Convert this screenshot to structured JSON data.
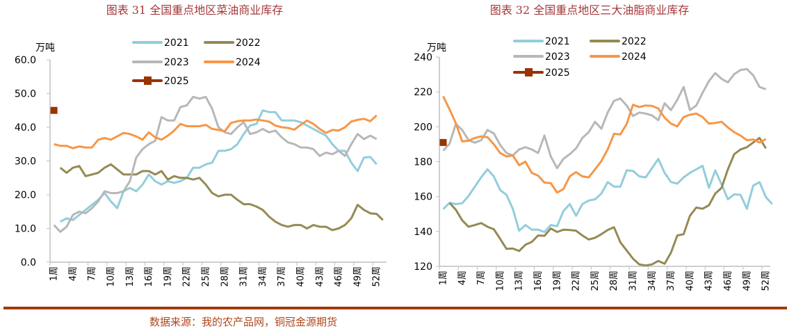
{
  "footer": {
    "source": "数据来源：我的农产品网，铜冠金源期货"
  },
  "colors": {
    "2021": "#92cddc",
    "2022": "#948a54",
    "2023": "#b7b7b7",
    "2024": "#f79646",
    "2025": "#993300",
    "title": "#a4373a",
    "rule": "#a33a0a"
  },
  "chart_data": [
    {
      "type": "line",
      "title": "图表 31  全国重点地区菜油商业库存",
      "ylabel": "万吨",
      "xlabel": "",
      "ylim": [
        0,
        60
      ],
      "yticks": [
        "60.0",
        "50.0",
        "40.0",
        "30.0",
        "20.0",
        "10.0",
        "0.0"
      ],
      "xtick_labels": [
        "1周",
        "4周",
        "7周",
        "10周",
        "13周",
        "16周",
        "19周",
        "22周",
        "25周",
        "28周",
        "31周",
        "34周",
        "37周",
        "40周",
        "43周",
        "46周",
        "49周",
        "52周"
      ],
      "grid": false,
      "legend": "top",
      "series": [
        {
          "name": "2021",
          "values": [
            null,
            12,
            13,
            12.5,
            14,
            15.5,
            17,
            18.5,
            20.5,
            18,
            16,
            21,
            22,
            21,
            23,
            26,
            24,
            23,
            24,
            23.5,
            24,
            25,
            28,
            28,
            29,
            29.5,
            33,
            33,
            33.5,
            35,
            38,
            40.5,
            41,
            45,
            44.5,
            44.5,
            42,
            42,
            42,
            41.5,
            40.5,
            39.5,
            38.5,
            37.5,
            35,
            33,
            33,
            29.5,
            27,
            31,
            31.2,
            29
          ]
        },
        {
          "name": "2022",
          "values": [
            null,
            28,
            26.5,
            28,
            28.5,
            25.5,
            26,
            26.5,
            28,
            29,
            27.5,
            26,
            26,
            26,
            27,
            27,
            26,
            27,
            24.5,
            25.5,
            25,
            25,
            24.5,
            25,
            23,
            20.5,
            19.5,
            20,
            20,
            18.5,
            17.2,
            17.2,
            16.5,
            15.5,
            13.5,
            12,
            11,
            10.5,
            11,
            11,
            10,
            11,
            10.5,
            10.5,
            9.5,
            10,
            11,
            13,
            17,
            15.5,
            14.5,
            14.3,
            12.5
          ]
        },
        {
          "name": "2023",
          "values": [
            11,
            9,
            10.5,
            14,
            15,
            14.5,
            16,
            18,
            21,
            20.5,
            20.5,
            21,
            24,
            31,
            33.5,
            35,
            36,
            43,
            42,
            42,
            46,
            46.5,
            49,
            48.5,
            49,
            45.5,
            40,
            38.5,
            38,
            40,
            41.5,
            38,
            38.5,
            39.5,
            38.5,
            39,
            37,
            35.5,
            35,
            34,
            34,
            33.5,
            31.5,
            32.5,
            32,
            33,
            31.5,
            35,
            38,
            36.5,
            37.5,
            36.5
          ]
        },
        {
          "name": "2024",
          "values": [
            35,
            34.5,
            34.5,
            33.8,
            34.3,
            34,
            34,
            36.3,
            36.8,
            36.3,
            37.3,
            38.3,
            38,
            37.3,
            36.3,
            38.5,
            37,
            36.3,
            37.5,
            39,
            41,
            40.3,
            40.3,
            40.3,
            40.7,
            39.5,
            39.2,
            38.8,
            41.3,
            41.8,
            42,
            42,
            42.3,
            42,
            41.7,
            40.5,
            40,
            39.8,
            39.3,
            40.7,
            42,
            41,
            39.5,
            38.3,
            39.2,
            39,
            40,
            41.7,
            42.2,
            42.5,
            41.8,
            43.5
          ]
        },
        {
          "name": "2025",
          "values": [
            45
          ],
          "marker": "square"
        }
      ]
    },
    {
      "type": "line",
      "title": "图表 32  全国重点地区三大油脂商业库存",
      "ylabel": "万吨",
      "xlabel": "",
      "ylim": [
        120,
        240
      ],
      "yticks": [
        "240",
        "220",
        "200",
        "180",
        "160",
        "140",
        "120"
      ],
      "xtick_labels": [
        "1周",
        "4周",
        "7周",
        "10周",
        "13周",
        "16周",
        "19周",
        "22周",
        "25周",
        "28周",
        "31周",
        "34周",
        "37周",
        "40周",
        "43周",
        "46周",
        "49周",
        "52周"
      ],
      "grid": false,
      "legend": "top",
      "series": [
        {
          "name": "2021",
          "values": [
            152.8,
            156.4,
            155.7,
            156.2,
            160.3,
            165.7,
            171,
            175.6,
            171.6,
            163.7,
            161,
            153,
            140.4,
            143.7,
            141,
            141,
            139.7,
            143.7,
            143,
            151.7,
            155.7,
            149,
            155.7,
            157.7,
            158.4,
            161.7,
            168.3,
            165.7,
            165.7,
            175,
            174.7,
            171.6,
            171,
            176.3,
            181.6,
            173.6,
            168.3,
            167.4,
            171,
            173.6,
            175.6,
            177.6,
            165,
            175,
            167,
            158.4,
            161.3,
            161,
            153,
            166.3,
            168.3,
            159.7,
            155.7
          ]
        },
        {
          "name": "2022",
          "values": [
            null,
            156.4,
            152.4,
            146.4,
            142.7,
            143.7,
            144.8,
            142.7,
            141.3,
            135.8,
            130,
            130.2,
            128.8,
            132.4,
            134,
            137.7,
            137.5,
            141.7,
            139.7,
            141,
            140.8,
            140.4,
            137.7,
            135.4,
            136.4,
            138.4,
            140.8,
            142.4,
            133.8,
            129.1,
            124.4,
            121.1,
            120.5,
            121.1,
            123.1,
            121.5,
            127.8,
            137.7,
            138.4,
            149,
            153.7,
            153,
            155,
            161.7,
            165,
            175.6,
            184.3,
            187,
            188.3,
            191,
            193.6,
            187.6
          ]
        },
        {
          "name": "2023",
          "values": [
            186.3,
            190.3,
            201.6,
            198.2,
            192.3,
            190.9,
            192.3,
            198.2,
            196.2,
            189.6,
            185,
            183.6,
            187,
            188.3,
            187,
            185,
            195,
            183,
            176.3,
            181.6,
            184.3,
            187.6,
            193.6,
            196.9,
            202.9,
            198.9,
            208.2,
            214.9,
            216.2,
            212.2,
            206.2,
            208.2,
            207.6,
            206.5,
            203.8,
            213.5,
            209.6,
            215.5,
            222.8,
            209.6,
            212.2,
            219.5,
            226.2,
            230.8,
            227.5,
            225.5,
            230.2,
            232.6,
            233.1,
            229.5,
            222.8,
            221.5
          ]
        },
        {
          "name": "2024",
          "values": [
            217.5,
            210,
            202,
            191.6,
            192,
            193.6,
            194.5,
            194,
            190,
            185,
            183,
            183.6,
            178,
            180,
            173.6,
            172,
            168,
            167.7,
            162.3,
            164.3,
            171.6,
            174,
            171.6,
            171,
            175.6,
            180.3,
            187,
            196,
            195.6,
            201.6,
            212.6,
            211.3,
            212.2,
            212,
            210.5,
            205.2,
            201.8,
            200.2,
            205.6,
            206.9,
            207.6,
            205.6,
            201.8,
            202.2,
            202.9,
            199.6,
            196.9,
            195,
            192.3,
            192.7,
            191,
            193
          ]
        },
        {
          "name": "2025",
          "values": [
            191
          ],
          "marker": "square"
        }
      ]
    }
  ]
}
